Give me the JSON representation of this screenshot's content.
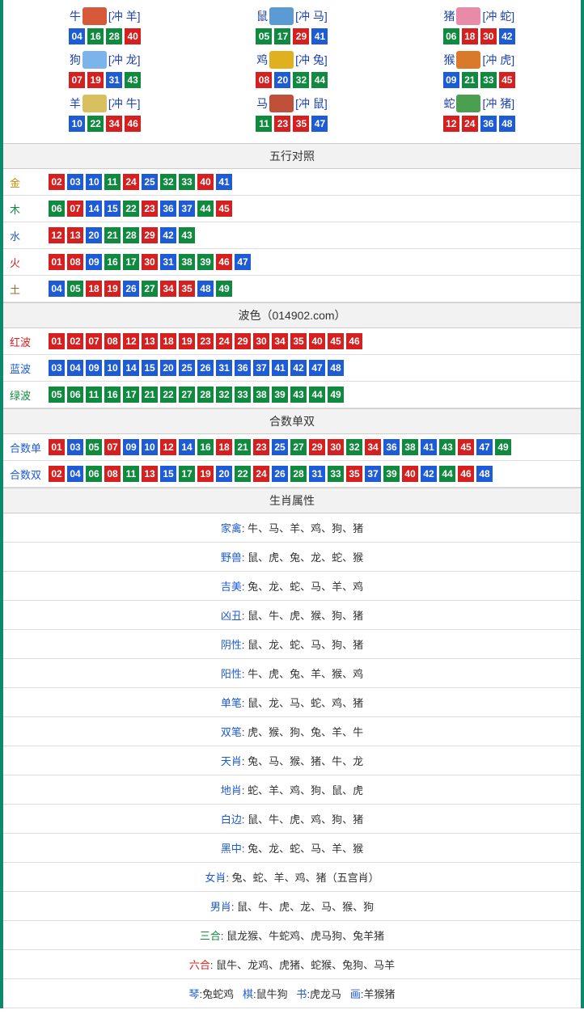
{
  "colors": {
    "red": "#d61f1f",
    "blue": "#1e5bd6",
    "green": "#0f8a3e",
    "border": "#0a8a6a",
    "header_bg": "#f2f2f2"
  },
  "ball_size": 20,
  "zodiac_top": [
    {
      "name": "牛",
      "clash": "[冲 羊]",
      "icon_color": "#d65a3a",
      "balls": [
        {
          "n": "04",
          "c": "blue"
        },
        {
          "n": "16",
          "c": "green"
        },
        {
          "n": "28",
          "c": "green"
        },
        {
          "n": "40",
          "c": "red"
        }
      ]
    },
    {
      "name": "鼠",
      "clash": "[冲 马]",
      "icon_color": "#5a9bd6",
      "balls": [
        {
          "n": "05",
          "c": "green"
        },
        {
          "n": "17",
          "c": "green"
        },
        {
          "n": "29",
          "c": "red"
        },
        {
          "n": "41",
          "c": "blue"
        }
      ]
    },
    {
      "name": "猪",
      "clash": "[冲 蛇]",
      "icon_color": "#e88aa8",
      "balls": [
        {
          "n": "06",
          "c": "green"
        },
        {
          "n": "18",
          "c": "red"
        },
        {
          "n": "30",
          "c": "red"
        },
        {
          "n": "42",
          "c": "blue"
        }
      ]
    },
    {
      "name": "狗",
      "clash": "[冲 龙]",
      "icon_color": "#7ab4ea",
      "balls": [
        {
          "n": "07",
          "c": "red"
        },
        {
          "n": "19",
          "c": "red"
        },
        {
          "n": "31",
          "c": "blue"
        },
        {
          "n": "43",
          "c": "green"
        }
      ]
    },
    {
      "name": "鸡",
      "clash": "[冲 兔]",
      "icon_color": "#e0b020",
      "balls": [
        {
          "n": "08",
          "c": "red"
        },
        {
          "n": "20",
          "c": "blue"
        },
        {
          "n": "32",
          "c": "green"
        },
        {
          "n": "44",
          "c": "green"
        }
      ]
    },
    {
      "name": "猴",
      "clash": "[冲 虎]",
      "icon_color": "#d87a2a",
      "balls": [
        {
          "n": "09",
          "c": "blue"
        },
        {
          "n": "21",
          "c": "green"
        },
        {
          "n": "33",
          "c": "green"
        },
        {
          "n": "45",
          "c": "red"
        }
      ]
    },
    {
      "name": "羊",
      "clash": "[冲 牛]",
      "icon_color": "#d8c060",
      "balls": [
        {
          "n": "10",
          "c": "blue"
        },
        {
          "n": "22",
          "c": "green"
        },
        {
          "n": "34",
          "c": "red"
        },
        {
          "n": "46",
          "c": "red"
        }
      ]
    },
    {
      "name": "马",
      "clash": "[冲 鼠]",
      "icon_color": "#c0503a",
      "balls": [
        {
          "n": "11",
          "c": "green"
        },
        {
          "n": "23",
          "c": "red"
        },
        {
          "n": "35",
          "c": "red"
        },
        {
          "n": "47",
          "c": "blue"
        }
      ]
    },
    {
      "name": "蛇",
      "clash": "[冲 猪]",
      "icon_color": "#4aa050",
      "balls": [
        {
          "n": "12",
          "c": "red"
        },
        {
          "n": "24",
          "c": "red"
        },
        {
          "n": "36",
          "c": "blue"
        },
        {
          "n": "48",
          "c": "blue"
        }
      ]
    }
  ],
  "sections": {
    "wuxing": {
      "title": "五行对照",
      "rows": [
        {
          "key": "金",
          "label_class": "label-gold",
          "balls": [
            {
              "n": "02",
              "c": "red"
            },
            {
              "n": "03",
              "c": "blue"
            },
            {
              "n": "10",
              "c": "blue"
            },
            {
              "n": "11",
              "c": "green"
            },
            {
              "n": "24",
              "c": "red"
            },
            {
              "n": "25",
              "c": "blue"
            },
            {
              "n": "32",
              "c": "green"
            },
            {
              "n": "33",
              "c": "green"
            },
            {
              "n": "40",
              "c": "red"
            },
            {
              "n": "41",
              "c": "blue"
            }
          ]
        },
        {
          "key": "木",
          "label_class": "label-wood",
          "balls": [
            {
              "n": "06",
              "c": "green"
            },
            {
              "n": "07",
              "c": "red"
            },
            {
              "n": "14",
              "c": "blue"
            },
            {
              "n": "15",
              "c": "blue"
            },
            {
              "n": "22",
              "c": "green"
            },
            {
              "n": "23",
              "c": "red"
            },
            {
              "n": "36",
              "c": "blue"
            },
            {
              "n": "37",
              "c": "blue"
            },
            {
              "n": "44",
              "c": "green"
            },
            {
              "n": "45",
              "c": "red"
            }
          ]
        },
        {
          "key": "水",
          "label_class": "label-water",
          "balls": [
            {
              "n": "12",
              "c": "red"
            },
            {
              "n": "13",
              "c": "red"
            },
            {
              "n": "20",
              "c": "blue"
            },
            {
              "n": "21",
              "c": "green"
            },
            {
              "n": "28",
              "c": "green"
            },
            {
              "n": "29",
              "c": "red"
            },
            {
              "n": "42",
              "c": "blue"
            },
            {
              "n": "43",
              "c": "green"
            }
          ]
        },
        {
          "key": "火",
          "label_class": "label-fire",
          "balls": [
            {
              "n": "01",
              "c": "red"
            },
            {
              "n": "08",
              "c": "red"
            },
            {
              "n": "09",
              "c": "blue"
            },
            {
              "n": "16",
              "c": "green"
            },
            {
              "n": "17",
              "c": "green"
            },
            {
              "n": "30",
              "c": "red"
            },
            {
              "n": "31",
              "c": "blue"
            },
            {
              "n": "38",
              "c": "green"
            },
            {
              "n": "39",
              "c": "green"
            },
            {
              "n": "46",
              "c": "red"
            },
            {
              "n": "47",
              "c": "blue"
            }
          ]
        },
        {
          "key": "土",
          "label_class": "label-earth",
          "balls": [
            {
              "n": "04",
              "c": "blue"
            },
            {
              "n": "05",
              "c": "green"
            },
            {
              "n": "18",
              "c": "red"
            },
            {
              "n": "19",
              "c": "red"
            },
            {
              "n": "26",
              "c": "blue"
            },
            {
              "n": "27",
              "c": "green"
            },
            {
              "n": "34",
              "c": "red"
            },
            {
              "n": "35",
              "c": "red"
            },
            {
              "n": "48",
              "c": "blue"
            },
            {
              "n": "49",
              "c": "green"
            }
          ]
        }
      ]
    },
    "bose": {
      "title": "波色（014902.com）",
      "rows": [
        {
          "key": "红波",
          "label_class": "label-red",
          "balls": [
            {
              "n": "01",
              "c": "red"
            },
            {
              "n": "02",
              "c": "red"
            },
            {
              "n": "07",
              "c": "red"
            },
            {
              "n": "08",
              "c": "red"
            },
            {
              "n": "12",
              "c": "red"
            },
            {
              "n": "13",
              "c": "red"
            },
            {
              "n": "18",
              "c": "red"
            },
            {
              "n": "19",
              "c": "red"
            },
            {
              "n": "23",
              "c": "red"
            },
            {
              "n": "24",
              "c": "red"
            },
            {
              "n": "29",
              "c": "red"
            },
            {
              "n": "30",
              "c": "red"
            },
            {
              "n": "34",
              "c": "red"
            },
            {
              "n": "35",
              "c": "red"
            },
            {
              "n": "40",
              "c": "red"
            },
            {
              "n": "45",
              "c": "red"
            },
            {
              "n": "46",
              "c": "red"
            }
          ]
        },
        {
          "key": "蓝波",
          "label_class": "label-bluewave",
          "balls": [
            {
              "n": "03",
              "c": "blue"
            },
            {
              "n": "04",
              "c": "blue"
            },
            {
              "n": "09",
              "c": "blue"
            },
            {
              "n": "10",
              "c": "blue"
            },
            {
              "n": "14",
              "c": "blue"
            },
            {
              "n": "15",
              "c": "blue"
            },
            {
              "n": "20",
              "c": "blue"
            },
            {
              "n": "25",
              "c": "blue"
            },
            {
              "n": "26",
              "c": "blue"
            },
            {
              "n": "31",
              "c": "blue"
            },
            {
              "n": "36",
              "c": "blue"
            },
            {
              "n": "37",
              "c": "blue"
            },
            {
              "n": "41",
              "c": "blue"
            },
            {
              "n": "42",
              "c": "blue"
            },
            {
              "n": "47",
              "c": "blue"
            },
            {
              "n": "48",
              "c": "blue"
            }
          ]
        },
        {
          "key": "绿波",
          "label_class": "label-greenwave",
          "balls": [
            {
              "n": "05",
              "c": "green"
            },
            {
              "n": "06",
              "c": "green"
            },
            {
              "n": "11",
              "c": "green"
            },
            {
              "n": "16",
              "c": "green"
            },
            {
              "n": "17",
              "c": "green"
            },
            {
              "n": "21",
              "c": "green"
            },
            {
              "n": "22",
              "c": "green"
            },
            {
              "n": "27",
              "c": "green"
            },
            {
              "n": "28",
              "c": "green"
            },
            {
              "n": "32",
              "c": "green"
            },
            {
              "n": "33",
              "c": "green"
            },
            {
              "n": "38",
              "c": "green"
            },
            {
              "n": "39",
              "c": "green"
            },
            {
              "n": "43",
              "c": "green"
            },
            {
              "n": "44",
              "c": "green"
            },
            {
              "n": "49",
              "c": "green"
            }
          ]
        }
      ]
    },
    "heshu": {
      "title": "合数单双",
      "rows": [
        {
          "key": "合数单",
          "label_class": "label-heodd",
          "balls": [
            {
              "n": "01",
              "c": "red"
            },
            {
              "n": "03",
              "c": "blue"
            },
            {
              "n": "05",
              "c": "green"
            },
            {
              "n": "07",
              "c": "red"
            },
            {
              "n": "09",
              "c": "blue"
            },
            {
              "n": "10",
              "c": "blue"
            },
            {
              "n": "12",
              "c": "red"
            },
            {
              "n": "14",
              "c": "blue"
            },
            {
              "n": "16",
              "c": "green"
            },
            {
              "n": "18",
              "c": "red"
            },
            {
              "n": "21",
              "c": "green"
            },
            {
              "n": "23",
              "c": "red"
            },
            {
              "n": "25",
              "c": "blue"
            },
            {
              "n": "27",
              "c": "green"
            },
            {
              "n": "29",
              "c": "red"
            },
            {
              "n": "30",
              "c": "red"
            },
            {
              "n": "32",
              "c": "green"
            },
            {
              "n": "34",
              "c": "red"
            },
            {
              "n": "36",
              "c": "blue"
            },
            {
              "n": "38",
              "c": "green"
            },
            {
              "n": "41",
              "c": "blue"
            },
            {
              "n": "43",
              "c": "green"
            },
            {
              "n": "45",
              "c": "red"
            },
            {
              "n": "47",
              "c": "blue"
            },
            {
              "n": "49",
              "c": "green"
            }
          ]
        },
        {
          "key": "合数双",
          "label_class": "label-heeven",
          "balls": [
            {
              "n": "02",
              "c": "red"
            },
            {
              "n": "04",
              "c": "blue"
            },
            {
              "n": "06",
              "c": "green"
            },
            {
              "n": "08",
              "c": "red"
            },
            {
              "n": "11",
              "c": "green"
            },
            {
              "n": "13",
              "c": "red"
            },
            {
              "n": "15",
              "c": "blue"
            },
            {
              "n": "17",
              "c": "green"
            },
            {
              "n": "19",
              "c": "red"
            },
            {
              "n": "20",
              "c": "blue"
            },
            {
              "n": "22",
              "c": "green"
            },
            {
              "n": "24",
              "c": "red"
            },
            {
              "n": "26",
              "c": "blue"
            },
            {
              "n": "28",
              "c": "green"
            },
            {
              "n": "31",
              "c": "blue"
            },
            {
              "n": "33",
              "c": "green"
            },
            {
              "n": "35",
              "c": "red"
            },
            {
              "n": "37",
              "c": "blue"
            },
            {
              "n": "39",
              "c": "green"
            },
            {
              "n": "40",
              "c": "red"
            },
            {
              "n": "42",
              "c": "blue"
            },
            {
              "n": "44",
              "c": "green"
            },
            {
              "n": "46",
              "c": "red"
            },
            {
              "n": "48",
              "c": "blue"
            }
          ]
        }
      ]
    },
    "shengxiao": {
      "title": "生肖属性",
      "attrs": [
        {
          "key": "家禽",
          "val": ": 牛、马、羊、鸡、狗、猪",
          "kc": "attr-key"
        },
        {
          "key": "野兽",
          "val": ": 鼠、虎、兔、龙、蛇、猴",
          "kc": "attr-key"
        },
        {
          "key": "吉美",
          "val": ": 兔、龙、蛇、马、羊、鸡",
          "kc": "attr-key"
        },
        {
          "key": "凶丑",
          "val": ": 鼠、牛、虎、猴、狗、猪",
          "kc": "attr-key"
        },
        {
          "key": "阴性",
          "val": ": 鼠、龙、蛇、马、狗、猪",
          "kc": "attr-key"
        },
        {
          "key": "阳性",
          "val": ": 牛、虎、兔、羊、猴、鸡",
          "kc": "attr-key"
        },
        {
          "key": "单笔",
          "val": ": 鼠、龙、马、蛇、鸡、猪",
          "kc": "attr-key"
        },
        {
          "key": "双笔",
          "val": ": 虎、猴、狗、兔、羊、牛",
          "kc": "attr-key"
        },
        {
          "key": "天肖",
          "val": ": 兔、马、猴、猪、牛、龙",
          "kc": "attr-key"
        },
        {
          "key": "地肖",
          "val": ": 蛇、羊、鸡、狗、鼠、虎",
          "kc": "attr-key"
        },
        {
          "key": "白边",
          "val": ": 鼠、牛、虎、鸡、狗、猪",
          "kc": "attr-key"
        },
        {
          "key": "黑中",
          "val": ": 兔、龙、蛇、马、羊、猴",
          "kc": "attr-key"
        },
        {
          "key": "女肖",
          "val": ": 兔、蛇、羊、鸡、猪（五宫肖）",
          "kc": "attr-key"
        },
        {
          "key": "男肖",
          "val": ": 鼠、牛、虎、龙、马、猴、狗",
          "kc": "attr-key"
        },
        {
          "key": "三合",
          "val": ": 鼠龙猴、牛蛇鸡、虎马狗、兔羊猪",
          "kc": "attr-key-green"
        },
        {
          "key": "六合",
          "val": ": 鼠牛、龙鸡、虎猪、蛇猴、兔狗、马羊",
          "kc": "attr-key-red"
        }
      ],
      "fourpart": {
        "items": [
          {
            "k": "琴",
            "v": ":兔蛇鸡"
          },
          {
            "k": "棋",
            "v": ":鼠牛狗"
          },
          {
            "k": "书",
            "v": ":虎龙马"
          },
          {
            "k": "画",
            "v": ":羊猴猪"
          }
        ]
      }
    }
  }
}
